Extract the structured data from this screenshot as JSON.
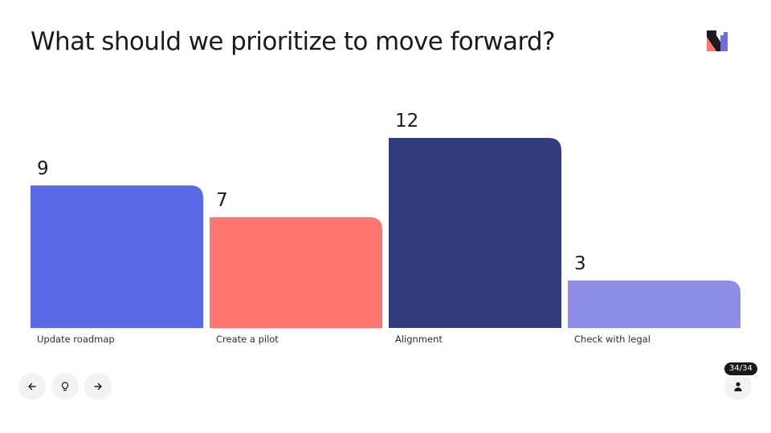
{
  "slide": {
    "title": "What should we prioritize to move forward?",
    "counter": "34/34"
  },
  "colors": {
    "blue": "#5a69e6",
    "coral": "#ff7570",
    "navy": "#323c7a",
    "lavender": "#8e8ee8"
  },
  "icons": {
    "prev": "arrow-left-icon",
    "hint": "lightbulb-icon",
    "next": "arrow-right-icon",
    "user": "person-icon",
    "logo": "mentimeter-logo-icon"
  },
  "chart_data": {
    "type": "bar",
    "categories": [
      "Update roadmap",
      "Create a pilot",
      "Alignment",
      "Check with legal"
    ],
    "values": [
      9,
      7,
      12,
      3
    ],
    "colors": [
      "#5a69e6",
      "#ff7570",
      "#323c7a",
      "#8e8ee8"
    ],
    "ylim": [
      0,
      12
    ],
    "grid": false,
    "legend": "none"
  }
}
